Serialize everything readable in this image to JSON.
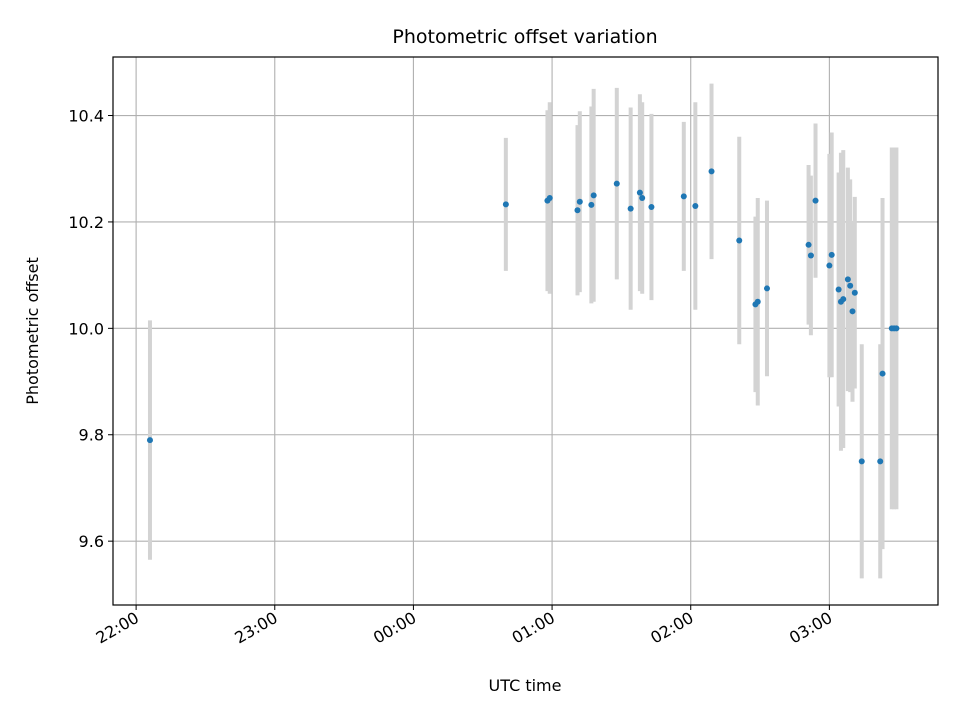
{
  "chart_data": {
    "type": "scatter",
    "title": "Photometric offset variation",
    "xlabel": "UTC time",
    "ylabel": "Photometric offset",
    "x_unit": "UTC hours",
    "xlim": [
      "21:50",
      "03:47"
    ],
    "ylim": [
      9.48,
      10.51
    ],
    "x_ticks": [
      "22:00",
      "23:00",
      "00:00",
      "01:00",
      "02:00",
      "03:00"
    ],
    "y_ticks": [
      "9.6",
      "9.8",
      "10.0",
      "10.2",
      "10.4"
    ],
    "y_tick_values": [
      9.6,
      9.8,
      10.0,
      10.2,
      10.4
    ],
    "grid": true,
    "legend": "none",
    "colors": {
      "marker": "#1f77b4",
      "errorbar": "#d3d3d3",
      "grid": "#b0b0b0"
    },
    "series": [
      {
        "points": [
          {
            "x": "22:06",
            "y": 9.79,
            "err": 0.225
          },
          {
            "x": "00:40",
            "y": 10.233,
            "err": 0.125
          },
          {
            "x": "00:58",
            "y": 10.24,
            "err": 0.17
          },
          {
            "x": "00:59",
            "y": 10.245,
            "err": 0.18
          },
          {
            "x": "01:11",
            "y": 10.222,
            "err": 0.16
          },
          {
            "x": "01:12",
            "y": 10.238,
            "err": 0.17
          },
          {
            "x": "01:17",
            "y": 10.232,
            "err": 0.185
          },
          {
            "x": "01:18",
            "y": 10.25,
            "err": 0.2
          },
          {
            "x": "01:28",
            "y": 10.272,
            "err": 0.18
          },
          {
            "x": "01:34",
            "y": 10.225,
            "err": 0.19
          },
          {
            "x": "01:38",
            "y": 10.255,
            "err": 0.185
          },
          {
            "x": "01:39",
            "y": 10.245,
            "err": 0.18
          },
          {
            "x": "01:43",
            "y": 10.228,
            "err": 0.175
          },
          {
            "x": "01:57",
            "y": 10.248,
            "err": 0.14
          },
          {
            "x": "02:02",
            "y": 10.23,
            "err": 0.195
          },
          {
            "x": "02:09",
            "y": 10.295,
            "err": 0.165
          },
          {
            "x": "02:21",
            "y": 10.165,
            "err": 0.195
          },
          {
            "x": "02:28",
            "y": 10.045,
            "err": 0.165
          },
          {
            "x": "02:29",
            "y": 10.05,
            "err": 0.195
          },
          {
            "x": "02:33",
            "y": 10.075,
            "err": 0.165
          },
          {
            "x": "02:51",
            "y": 10.157,
            "err": 0.15
          },
          {
            "x": "02:52",
            "y": 10.137,
            "err": 0.15
          },
          {
            "x": "02:54",
            "y": 10.24,
            "err": 0.145
          },
          {
            "x": "03:00",
            "y": 10.118,
            "err": 0.21
          },
          {
            "x": "03:01",
            "y": 10.138,
            "err": 0.23
          },
          {
            "x": "03:04",
            "y": 10.073,
            "err": 0.22
          },
          {
            "x": "03:05",
            "y": 10.05,
            "err": 0.28
          },
          {
            "x": "03:06",
            "y": 10.055,
            "err": 0.28
          },
          {
            "x": "03:08",
            "y": 10.092,
            "err": 0.21
          },
          {
            "x": "03:09",
            "y": 10.08,
            "err": 0.2
          },
          {
            "x": "03:10",
            "y": 10.032,
            "err": 0.17
          },
          {
            "x": "03:11",
            "y": 10.067,
            "err": 0.18
          },
          {
            "x": "03:14",
            "y": 9.75,
            "err": 0.22
          },
          {
            "x": "03:22",
            "y": 9.75,
            "err": 0.22
          },
          {
            "x": "03:23",
            "y": 9.915,
            "err": 0.33
          },
          {
            "x": "03:27",
            "y": 10.0,
            "err": 0.34
          },
          {
            "x": "03:28",
            "y": 10.0,
            "err": 0.34
          },
          {
            "x": "03:29",
            "y": 10.0,
            "err": 0.34
          }
        ]
      }
    ]
  }
}
